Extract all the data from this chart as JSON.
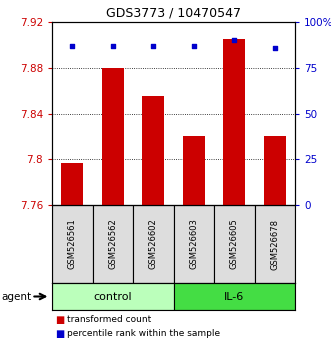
{
  "title": "GDS3773 / 10470547",
  "samples": [
    "GSM526561",
    "GSM526562",
    "GSM526602",
    "GSM526603",
    "GSM526605",
    "GSM526678"
  ],
  "bar_values": [
    7.797,
    7.88,
    7.855,
    7.82,
    7.905,
    7.82
  ],
  "percentile_values": [
    87,
    87,
    87,
    87,
    90,
    86
  ],
  "y_min": 7.76,
  "y_max": 7.92,
  "y_ticks": [
    7.76,
    7.8,
    7.84,
    7.88,
    7.92
  ],
  "y_tick_labels": [
    "7.76",
    "7.8",
    "7.84",
    "7.88",
    "7.92"
  ],
  "right_y_ticks": [
    0,
    25,
    50,
    75,
    100
  ],
  "right_y_tick_labels": [
    "0",
    "25",
    "50",
    "75",
    "100%"
  ],
  "bar_color": "#cc0000",
  "dot_color": "#0000cc",
  "sample_bg": "#dddddd",
  "groups": [
    {
      "label": "control",
      "indices": [
        0,
        1,
        2
      ],
      "color": "#bbffbb"
    },
    {
      "label": "IL-6",
      "indices": [
        3,
        4,
        5
      ],
      "color": "#44dd44"
    }
  ],
  "legend_items": [
    {
      "label": "transformed count",
      "color": "#cc0000"
    },
    {
      "label": "percentile rank within the sample",
      "color": "#0000cc"
    }
  ],
  "agent_label": "agent",
  "left_axis_color": "#cc0000",
  "right_axis_color": "#0000cc",
  "title_fontsize": 9,
  "tick_fontsize": 7.5,
  "sample_fontsize": 6,
  "group_fontsize": 8,
  "legend_fontsize": 6.5
}
